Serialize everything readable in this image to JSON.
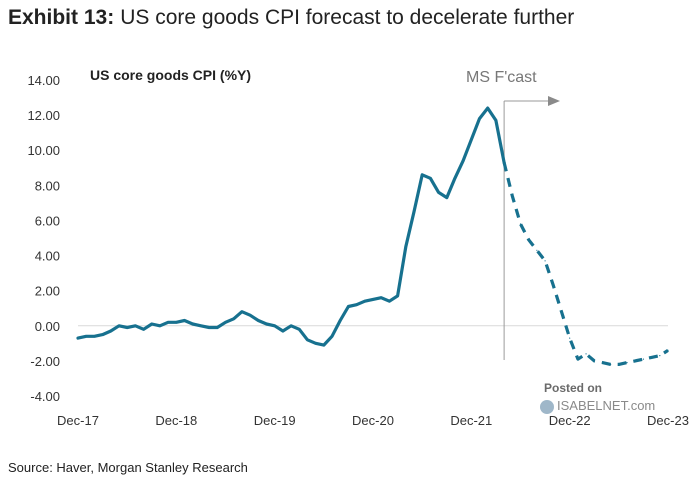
{
  "header": {
    "exhibit": "Exhibit 13:",
    "subtitle": "US core goods CPI forecast to decelerate further"
  },
  "footer": {
    "source": "Source: Haver, Morgan Stanley Research"
  },
  "watermark": {
    "line1": "Posted on",
    "line2": "ISABELNET.com"
  },
  "colors": {
    "series": "#17718f",
    "axis": "#d9d9d9",
    "annotation": "#888888"
  },
  "chart_data": {
    "type": "line",
    "title": "",
    "ylabel": "US core goods CPI (%Y)",
    "xlabel": "",
    "ylim": [
      -4,
      14
    ],
    "y_ticks": [
      -4,
      -2,
      0,
      2,
      4,
      6,
      8,
      10,
      12,
      14
    ],
    "y_tick_labels": [
      "-4.00",
      "-2.00",
      "0.00",
      "2.00",
      "4.00",
      "6.00",
      "8.00",
      "10.00",
      "12.00",
      "14.00"
    ],
    "x_ticks": [
      "Dec-17",
      "Dec-18",
      "Dec-19",
      "Dec-20",
      "Dec-21",
      "Dec-22",
      "Dec-23"
    ],
    "x_start": "Dec-17",
    "grid": false,
    "annotation": {
      "text": "MS F'cast",
      "at": "Apr-22"
    },
    "series": [
      {
        "style": "solid",
        "x": [
          "Dec-17",
          "Jan-18",
          "Feb-18",
          "Mar-18",
          "Apr-18",
          "May-18",
          "Jun-18",
          "Jul-18",
          "Aug-18",
          "Sep-18",
          "Oct-18",
          "Nov-18",
          "Dec-18",
          "Jan-19",
          "Feb-19",
          "Mar-19",
          "Apr-19",
          "May-19",
          "Jun-19",
          "Jul-19",
          "Aug-19",
          "Sep-19",
          "Oct-19",
          "Nov-19",
          "Dec-19",
          "Jan-20",
          "Feb-20",
          "Mar-20",
          "Apr-20",
          "May-20",
          "Jun-20",
          "Jul-20",
          "Aug-20",
          "Sep-20",
          "Oct-20",
          "Nov-20",
          "Dec-20",
          "Jan-21",
          "Feb-21",
          "Mar-21",
          "Apr-21",
          "May-21",
          "Jun-21",
          "Jul-21",
          "Aug-21",
          "Sep-21",
          "Oct-21",
          "Nov-21",
          "Dec-21",
          "Jan-22",
          "Feb-22",
          "Mar-22",
          "Apr-22"
        ],
        "y": [
          -0.7,
          -0.6,
          -0.6,
          -0.5,
          -0.3,
          0.0,
          -0.1,
          0.0,
          -0.2,
          0.1,
          0.0,
          0.2,
          0.2,
          0.3,
          0.1,
          0.0,
          -0.1,
          -0.1,
          0.2,
          0.4,
          0.8,
          0.6,
          0.3,
          0.1,
          0.0,
          -0.3,
          0.0,
          -0.2,
          -0.8,
          -1.0,
          -1.1,
          -0.6,
          0.3,
          1.1,
          1.2,
          1.4,
          1.5,
          1.6,
          1.4,
          1.7,
          4.5,
          6.5,
          8.6,
          8.4,
          7.6,
          7.3,
          8.4,
          9.4,
          10.6,
          11.8,
          12.4,
          11.7,
          9.3
        ]
      },
      {
        "style": "dashed",
        "x": [
          "Apr-22",
          "May-22",
          "Jun-22",
          "Jul-22",
          "Aug-22",
          "Sep-22",
          "Oct-22",
          "Nov-22",
          "Dec-22",
          "Jan-23",
          "Feb-23",
          "Mar-23",
          "Apr-23",
          "May-23",
          "Jun-23",
          "Jul-23",
          "Aug-23",
          "Sep-23",
          "Oct-23",
          "Nov-23",
          "Dec-23"
        ],
        "y": [
          9.3,
          7.4,
          5.8,
          4.9,
          4.3,
          3.7,
          2.3,
          0.8,
          -0.7,
          -1.9,
          -1.6,
          -2.0,
          -2.1,
          -2.2,
          -2.2,
          -2.1,
          -2.0,
          -1.9,
          -1.8,
          -1.7,
          -1.4
        ]
      }
    ]
  }
}
